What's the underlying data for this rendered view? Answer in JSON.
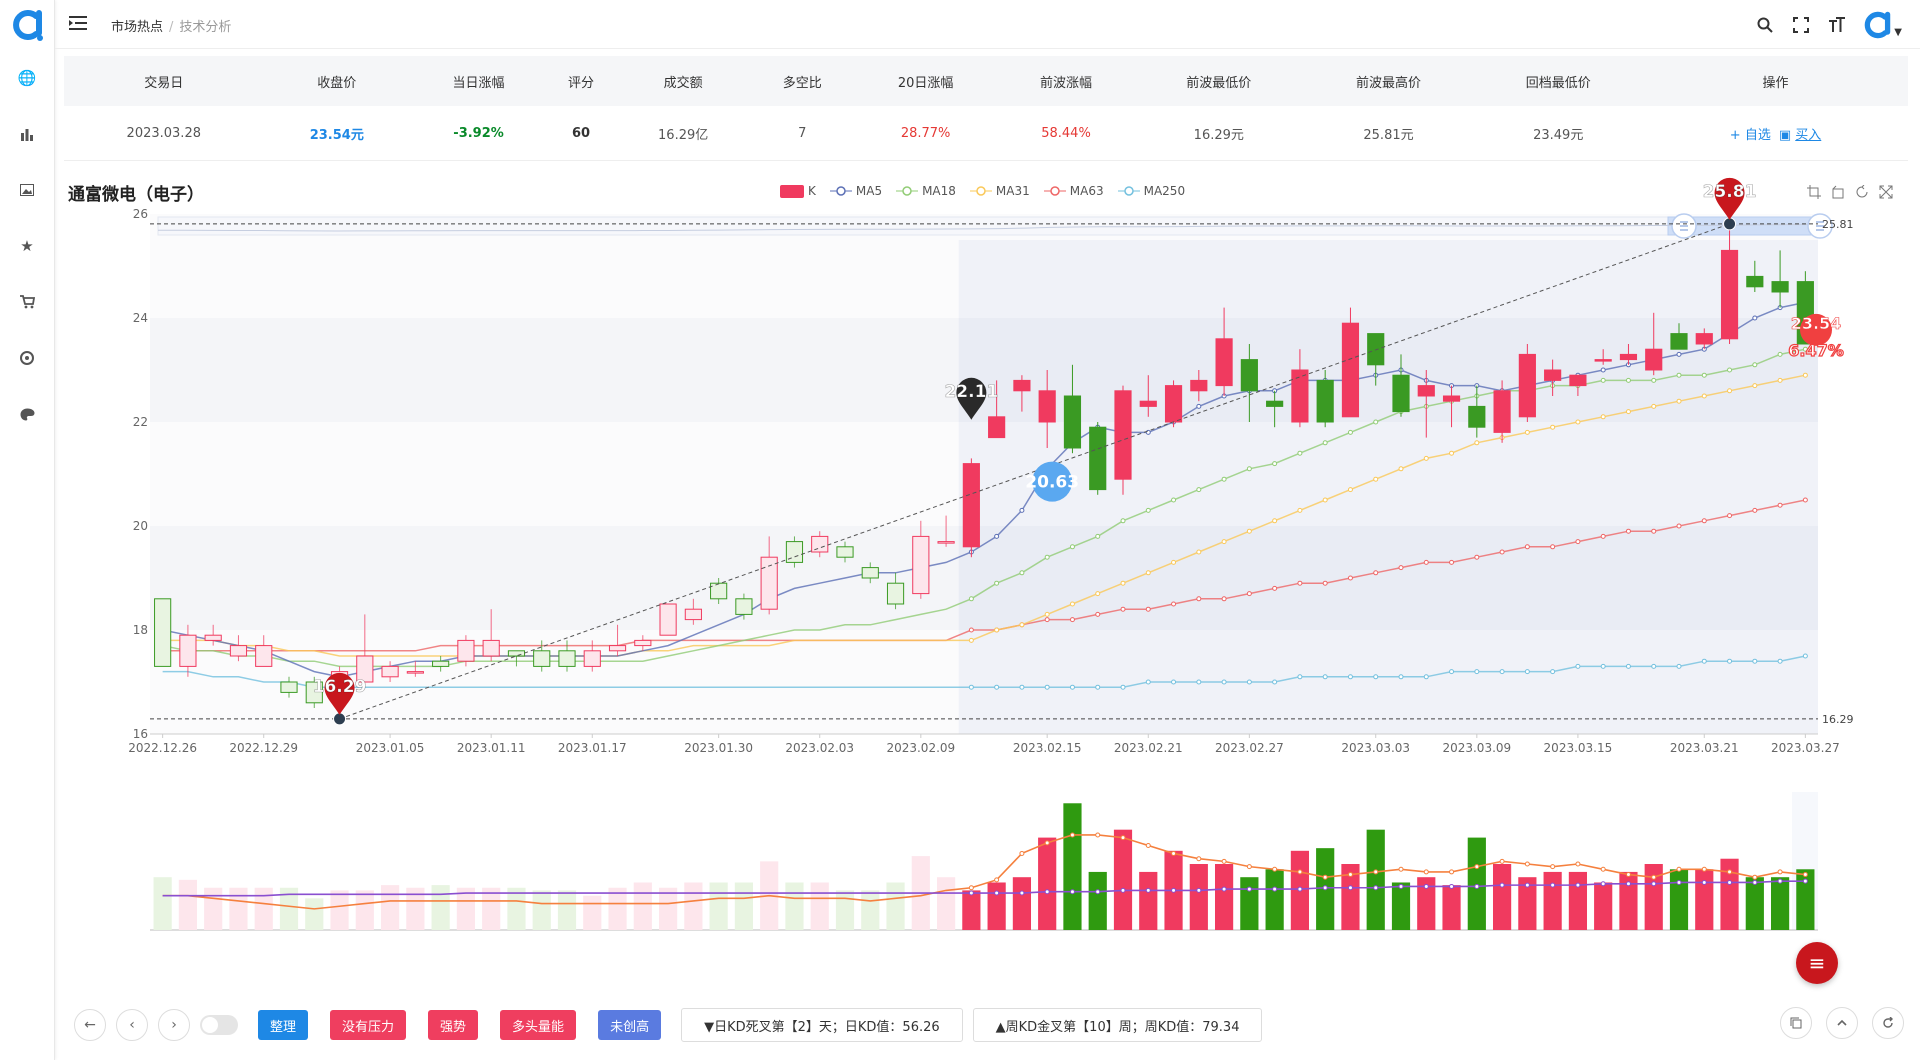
{
  "breadcrumb": {
    "first": "市场热点",
    "separator": "/",
    "second": "技术分析"
  },
  "table": {
    "headers": [
      "交易日",
      "收盘价",
      "当日涨幅",
      "评分",
      "成交额",
      "多空比",
      "20日涨幅",
      "前波涨幅",
      "前波最低价",
      "前波最高价",
      "回档最低价",
      "操作"
    ],
    "row": {
      "date": "2023.03.28",
      "close": "23.54元",
      "change": "-3.92%",
      "score": "60",
      "turnover": "16.29亿",
      "ratio": "7",
      "change20": "28.77%",
      "wave_change": "58.44%",
      "wave_low": "16.29元",
      "wave_high": "25.81元",
      "pullback_low": "23.49元"
    },
    "actions": {
      "add": "+ 自选",
      "buy": "买入"
    }
  },
  "stock_name": "通富微电（电子）",
  "legend": [
    "K",
    "MA5",
    "MA18",
    "MA31",
    "MA63",
    "MA250"
  ],
  "colors": {
    "up": "#f03a5f",
    "down": "#3a9a23",
    "ma5": "#5b6fb5",
    "ma18": "#91cc75",
    "ma31": "#fac858",
    "ma63": "#ee6666",
    "ma250": "#73c0de",
    "blue": "#1e88e5"
  },
  "chart_data": {
    "type": "candlestick",
    "ylim": [
      16,
      26
    ],
    "y_ticks": [
      16,
      18,
      20,
      22,
      24,
      26
    ],
    "x_tick_labels": [
      "2022.12.26",
      "2022.12.29",
      "2023.01.05",
      "2023.01.11",
      "2023.01.17",
      "2023.01.30",
      "2023.02.03",
      "2023.02.09",
      "2023.02.15",
      "2023.02.21",
      "2023.02.27",
      "2023.03.03",
      "2023.03.09",
      "2023.03.15",
      "2023.03.21",
      "2023.03.27"
    ],
    "candles": [
      [
        18.6,
        17.3,
        17.3,
        18.6
      ],
      [
        17.3,
        17.9,
        17.1,
        18.1
      ],
      [
        17.8,
        17.9,
        17.7,
        18.1
      ],
      [
        17.5,
        17.7,
        17.4,
        17.9
      ],
      [
        17.3,
        17.7,
        17.3,
        17.9
      ],
      [
        17.0,
        16.8,
        16.7,
        17.1
      ],
      [
        17.0,
        16.6,
        16.5,
        17.1
      ],
      [
        17.0,
        17.2,
        16.9,
        17.3
      ],
      [
        17.0,
        17.5,
        17.0,
        18.3
      ],
      [
        17.1,
        17.3,
        17.0,
        17.4
      ],
      [
        17.2,
        17.2,
        17.1,
        17.4
      ],
      [
        17.4,
        17.3,
        17.2,
        17.5
      ],
      [
        17.4,
        17.8,
        17.3,
        17.9
      ],
      [
        17.5,
        17.8,
        17.4,
        18.4
      ],
      [
        17.6,
        17.5,
        17.3,
        17.6
      ],
      [
        17.6,
        17.3,
        17.2,
        17.8
      ],
      [
        17.6,
        17.3,
        17.2,
        17.8
      ],
      [
        17.3,
        17.6,
        17.2,
        17.8
      ],
      [
        17.6,
        17.7,
        17.5,
        18.1
      ],
      [
        17.7,
        17.8,
        17.6,
        17.9
      ],
      [
        17.9,
        18.5,
        17.9,
        18.5
      ],
      [
        18.2,
        18.4,
        18.1,
        18.6
      ],
      [
        18.9,
        18.6,
        18.5,
        19.0
      ],
      [
        18.6,
        18.3,
        18.2,
        18.7
      ],
      [
        18.4,
        19.4,
        18.3,
        19.8
      ],
      [
        19.7,
        19.3,
        19.2,
        19.8
      ],
      [
        19.5,
        19.8,
        19.4,
        19.9
      ],
      [
        19.6,
        19.4,
        19.3,
        19.7
      ],
      [
        19.2,
        19.0,
        18.9,
        19.3
      ],
      [
        18.9,
        18.5,
        18.4,
        19.1
      ],
      [
        18.7,
        19.8,
        18.6,
        20.1
      ],
      [
        19.7,
        19.7,
        19.6,
        20.2
      ],
      [
        19.6,
        21.2,
        19.4,
        21.3
      ],
      [
        21.7,
        22.1,
        21.7,
        22.8
      ],
      [
        22.6,
        22.8,
        22.2,
        22.9
      ],
      [
        22.0,
        22.6,
        21.5,
        23.0
      ],
      [
        22.5,
        21.5,
        21.4,
        23.1
      ],
      [
        21.9,
        20.7,
        20.6,
        22.0
      ],
      [
        20.9,
        22.6,
        20.6,
        22.7
      ],
      [
        22.3,
        22.4,
        22.1,
        22.9
      ],
      [
        22.0,
        22.7,
        21.9,
        22.8
      ],
      [
        22.6,
        22.8,
        22.4,
        23.0
      ],
      [
        22.7,
        23.6,
        22.5,
        24.2
      ],
      [
        23.2,
        22.6,
        22.0,
        23.5
      ],
      [
        22.4,
        22.3,
        21.9,
        22.6
      ],
      [
        22.0,
        23.0,
        21.9,
        23.4
      ],
      [
        22.8,
        22.0,
        21.9,
        23.0
      ],
      [
        22.1,
        23.9,
        22.1,
        24.2
      ],
      [
        23.7,
        23.1,
        22.7,
        23.7
      ],
      [
        22.9,
        22.2,
        22.1,
        23.3
      ],
      [
        22.5,
        22.7,
        21.7,
        23.0
      ],
      [
        22.4,
        22.5,
        21.9,
        22.7
      ],
      [
        22.3,
        21.9,
        21.7,
        22.7
      ],
      [
        21.8,
        22.6,
        21.6,
        22.8
      ],
      [
        22.1,
        23.3,
        22.0,
        23.5
      ],
      [
        22.8,
        23.0,
        22.5,
        23.2
      ],
      [
        22.7,
        22.9,
        22.5,
        22.9
      ],
      [
        23.2,
        23.2,
        23.1,
        23.4
      ],
      [
        23.2,
        23.3,
        23.1,
        23.5
      ],
      [
        23.0,
        23.4,
        22.9,
        24.1
      ],
      [
        23.7,
        23.4,
        23.4,
        23.9
      ],
      [
        23.5,
        23.7,
        23.4,
        23.8
      ],
      [
        23.6,
        25.3,
        23.5,
        25.8
      ],
      [
        24.8,
        24.6,
        24.5,
        25.1
      ],
      [
        24.7,
        24.5,
        24.2,
        25.3
      ],
      [
        24.7,
        23.5,
        23.5,
        24.9
      ]
    ],
    "ma5": [
      18.0,
      17.9,
      17.8,
      17.7,
      17.6,
      17.4,
      17.2,
      17.1,
      17.2,
      17.3,
      17.4,
      17.4,
      17.5,
      17.5,
      17.5,
      17.5,
      17.5,
      17.5,
      17.5,
      17.6,
      17.7,
      17.9,
      18.1,
      18.3,
      18.6,
      18.8,
      18.9,
      19.0,
      19.1,
      19.1,
      19.2,
      19.3,
      19.5,
      19.8,
      20.3,
      21.1,
      21.6,
      21.9,
      21.8,
      21.8,
      22.0,
      22.3,
      22.5,
      22.6,
      22.6,
      22.8,
      22.8,
      22.8,
      22.9,
      23.0,
      22.8,
      22.7,
      22.7,
      22.6,
      22.7,
      22.8,
      22.9,
      23.0,
      23.1,
      23.2,
      23.3,
      23.4,
      23.7,
      24.0,
      24.2,
      24.3
    ],
    "ma18": [
      17.7,
      17.6,
      17.6,
      17.5,
      17.5,
      17.4,
      17.4,
      17.3,
      17.3,
      17.3,
      17.3,
      17.3,
      17.4,
      17.4,
      17.4,
      17.4,
      17.4,
      17.4,
      17.4,
      17.4,
      17.5,
      17.6,
      17.7,
      17.8,
      17.9,
      18.0,
      18.0,
      18.1,
      18.1,
      18.2,
      18.3,
      18.4,
      18.6,
      18.9,
      19.1,
      19.4,
      19.6,
      19.8,
      20.1,
      20.3,
      20.5,
      20.7,
      20.9,
      21.1,
      21.2,
      21.4,
      21.6,
      21.8,
      22.0,
      22.2,
      22.3,
      22.4,
      22.5,
      22.6,
      22.6,
      22.7,
      22.7,
      22.8,
      22.8,
      22.8,
      22.9,
      22.9,
      23.0,
      23.1,
      23.3,
      23.4
    ],
    "ma31": [
      17.8,
      17.8,
      17.8,
      17.7,
      17.7,
      17.6,
      17.6,
      17.5,
      17.5,
      17.5,
      17.5,
      17.5,
      17.5,
      17.5,
      17.5,
      17.5,
      17.5,
      17.5,
      17.5,
      17.6,
      17.6,
      17.7,
      17.7,
      17.7,
      17.7,
      17.8,
      17.8,
      17.8,
      17.8,
      17.8,
      17.8,
      17.8,
      17.8,
      18.0,
      18.1,
      18.3,
      18.5,
      18.7,
      18.9,
      19.1,
      19.3,
      19.5,
      19.7,
      19.9,
      20.1,
      20.3,
      20.5,
      20.7,
      20.9,
      21.1,
      21.3,
      21.4,
      21.6,
      21.7,
      21.8,
      21.9,
      22.0,
      22.1,
      22.2,
      22.3,
      22.4,
      22.5,
      22.6,
      22.7,
      22.8,
      22.9
    ],
    "ma63": [
      17.6,
      17.6,
      17.6,
      17.6,
      17.6,
      17.6,
      17.6,
      17.6,
      17.6,
      17.6,
      17.6,
      17.7,
      17.7,
      17.7,
      17.7,
      17.7,
      17.7,
      17.7,
      17.7,
      17.8,
      17.8,
      17.8,
      17.8,
      17.8,
      17.8,
      17.8,
      17.8,
      17.8,
      17.8,
      17.8,
      17.8,
      17.8,
      18.0,
      18.0,
      18.1,
      18.2,
      18.2,
      18.3,
      18.4,
      18.4,
      18.5,
      18.6,
      18.6,
      18.7,
      18.8,
      18.9,
      18.9,
      19.0,
      19.1,
      19.2,
      19.3,
      19.3,
      19.4,
      19.5,
      19.6,
      19.6,
      19.7,
      19.8,
      19.9,
      19.9,
      20.0,
      20.1,
      20.2,
      20.3,
      20.4,
      20.5
    ],
    "ma250": [
      17.2,
      17.2,
      17.1,
      17.1,
      17.0,
      17.0,
      16.9,
      16.9,
      16.9,
      16.9,
      16.9,
      16.9,
      16.9,
      16.9,
      16.9,
      16.9,
      16.9,
      16.9,
      16.9,
      16.9,
      16.9,
      16.9,
      16.9,
      16.9,
      16.9,
      16.9,
      16.9,
      16.9,
      16.9,
      16.9,
      16.9,
      16.9,
      16.9,
      16.9,
      16.9,
      16.9,
      16.9,
      16.9,
      16.9,
      17.0,
      17.0,
      17.0,
      17.0,
      17.0,
      17.0,
      17.1,
      17.1,
      17.1,
      17.1,
      17.1,
      17.1,
      17.2,
      17.2,
      17.2,
      17.2,
      17.2,
      17.3,
      17.3,
      17.3,
      17.3,
      17.3,
      17.4,
      17.4,
      17.4,
      17.4,
      17.5
    ],
    "volumes": [
      40,
      38,
      32,
      32,
      32,
      32,
      24,
      30,
      30,
      34,
      32,
      34,
      32,
      32,
      32,
      30,
      30,
      26,
      32,
      36,
      32,
      36,
      36,
      36,
      52,
      36,
      36,
      30,
      30,
      36,
      56,
      40,
      30,
      36,
      40,
      70,
      96,
      44,
      76,
      44,
      60,
      50,
      50,
      40,
      46,
      60,
      62,
      50,
      76,
      36,
      40,
      34,
      70,
      50,
      40,
      44,
      44,
      36,
      44,
      50,
      46,
      46,
      54,
      40,
      40,
      46
    ],
    "vol_line_a": [
      26,
      26,
      24,
      22,
      20,
      18,
      16,
      18,
      20,
      22,
      22,
      22,
      22,
      22,
      22,
      20,
      20,
      20,
      20,
      20,
      20,
      22,
      24,
      24,
      26,
      24,
      24,
      24,
      22,
      24,
      26,
      30,
      32,
      38,
      58,
      66,
      72,
      72,
      70,
      64,
      58,
      54,
      52,
      48,
      46,
      44,
      40,
      42,
      44,
      46,
      44,
      44,
      48,
      52,
      50,
      48,
      50,
      46,
      42,
      40,
      46,
      46,
      44,
      40,
      44,
      42
    ],
    "vol_line_b": [
      26,
      26,
      26,
      26,
      26,
      27,
      27,
      27,
      27,
      27,
      27,
      27,
      28,
      28,
      28,
      28,
      28,
      28,
      28,
      28,
      28,
      28,
      28,
      28,
      28,
      28,
      28,
      28,
      28,
      28,
      28,
      28,
      28,
      28,
      28,
      29,
      29,
      29,
      30,
      30,
      30,
      30,
      31,
      31,
      31,
      31,
      32,
      32,
      32,
      33,
      33,
      33,
      33,
      34,
      34,
      34,
      34,
      35,
      35,
      35,
      36,
      36,
      36,
      36,
      37,
      37
    ],
    "annotations": {
      "low_label": "16.29",
      "low_line": "16.29",
      "high_label": "25.81",
      "high_line": "25.81",
      "mid_label": "22.11",
      "mid2_label": "20.63",
      "last_price": "23.54",
      "last_pct": "6.47%"
    }
  },
  "bottom": {
    "tags": [
      {
        "label": "整理",
        "color": "#1e88e5"
      },
      {
        "label": "没有压力",
        "color": "#ef3e5f"
      },
      {
        "label": "强势",
        "color": "#ef3e5f"
      },
      {
        "label": "多头量能",
        "color": "#ef3e5f"
      },
      {
        "label": "未创高",
        "color": "#5a7be0"
      }
    ],
    "kd_daily": "▼日KD死叉第【2】天；日KD值：56.26",
    "kd_weekly": "▲周KD金叉第【10】周；周KD值：79.34"
  }
}
